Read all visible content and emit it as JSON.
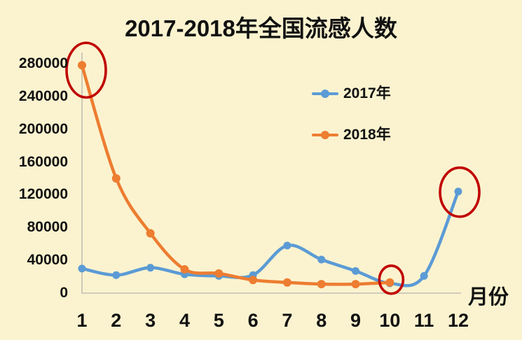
{
  "chart_data": {
    "type": "line",
    "title": "2017-2018年全国流感人数",
    "xlabel": "月份",
    "ylabel": "",
    "categories": [
      "1",
      "2",
      "3",
      "4",
      "5",
      "6",
      "7",
      "8",
      "9",
      "10",
      "11",
      "12"
    ],
    "yticks": [
      "0",
      "40000",
      "80000",
      "120000",
      "160000",
      "200000",
      "240000",
      "280000"
    ],
    "ylim": [
      0,
      280000
    ],
    "ytick_step": 40000,
    "grid": false,
    "smooth_lines": true,
    "legend_position": "center-upper",
    "background_color": "#fbf3cf",
    "axis_color": "#c2bfb3",
    "series": [
      {
        "name": "2017年",
        "color": "#5b9bd5",
        "values": [
          30000,
          22000,
          31000,
          23000,
          21000,
          22000,
          58000,
          41000,
          27000,
          12000,
          21000,
          124000
        ]
      },
      {
        "name": "2018年",
        "color": "#ed7d31",
        "values": [
          278000,
          140000,
          73000,
          29000,
          24000,
          16000,
          13000,
          11000,
          11000,
          13000,
          null,
          null
        ]
      }
    ],
    "annotations": [
      {
        "shape": "ellipse",
        "color": "#c00000",
        "series_index": 1,
        "month_index": 0,
        "marks": "2018年1月峰值"
      },
      {
        "shape": "ellipse",
        "color": "#c00000",
        "series_index": 1,
        "month_index": 9,
        "marks": "2018年10月终点"
      },
      {
        "shape": "ellipse",
        "color": "#c00000",
        "series_index": 0,
        "month_index": 11,
        "marks": "2017年12月峰值"
      }
    ]
  }
}
